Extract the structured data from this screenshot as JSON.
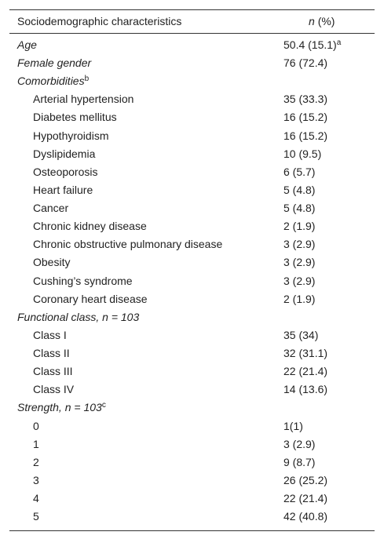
{
  "header": {
    "label": "Sociodemographic characteristics",
    "value_n": "n",
    "value_rest": "(%)"
  },
  "rows": [
    {
      "style": "category",
      "label": "Age",
      "value": "50.4 (15.1)",
      "value_note": "a"
    },
    {
      "style": "category",
      "label": "Female gender",
      "value": "76 (72.4)"
    },
    {
      "style": "category",
      "label": "Comorbidities",
      "label_note": "b"
    },
    {
      "style": "item",
      "label": "Arterial hypertension",
      "value": "35 (33.3)"
    },
    {
      "style": "item",
      "label": "Diabetes mellitus",
      "value": "16 (15.2)"
    },
    {
      "style": "item",
      "label": "Hypothyroidism",
      "value": "16 (15.2)"
    },
    {
      "style": "item",
      "label": "Dyslipidemia",
      "value": "10 (9.5)"
    },
    {
      "style": "item",
      "label": "Osteoporosis",
      "value": "6 (5.7)"
    },
    {
      "style": "item",
      "label": "Heart failure",
      "value": "5 (4.8)"
    },
    {
      "style": "item",
      "label": "Cancer",
      "value": "5 (4.8)"
    },
    {
      "style": "item",
      "label": "Chronic kidney disease",
      "value": "2 (1.9)"
    },
    {
      "style": "item",
      "label": "Chronic obstructive pulmonary disease",
      "value": "3 (2.9)"
    },
    {
      "style": "item",
      "label": "Obesity",
      "value": "3 (2.9)"
    },
    {
      "style": "item",
      "label": "Cushing’s syndrome",
      "value": "3 (2.9)"
    },
    {
      "style": "item",
      "label": "Coronary heart disease",
      "value": "2 (1.9)"
    },
    {
      "style": "category",
      "label": "Functional class, n = 103"
    },
    {
      "style": "item",
      "label": "Class I",
      "value": "35 (34)"
    },
    {
      "style": "item",
      "label": "Class II",
      "value": "32 (31.1)"
    },
    {
      "style": "item",
      "label": "Class III",
      "value": "22 (21.4)"
    },
    {
      "style": "item",
      "label": "Class IV",
      "value": "14 (13.6)"
    },
    {
      "style": "category",
      "label": "Strength, n = 103",
      "label_note": "c"
    },
    {
      "style": "item",
      "label": "0",
      "value": "1(1)"
    },
    {
      "style": "item",
      "label": "1",
      "value": "3 (2.9)"
    },
    {
      "style": "item",
      "label": "2",
      "value": "9 (8.7)"
    },
    {
      "style": "item",
      "label": "3",
      "value": "26 (25.2)"
    },
    {
      "style": "item",
      "label": "4",
      "value": "22 (21.4)"
    },
    {
      "style": "item",
      "label": "5",
      "value": "42 (40.8)"
    }
  ]
}
